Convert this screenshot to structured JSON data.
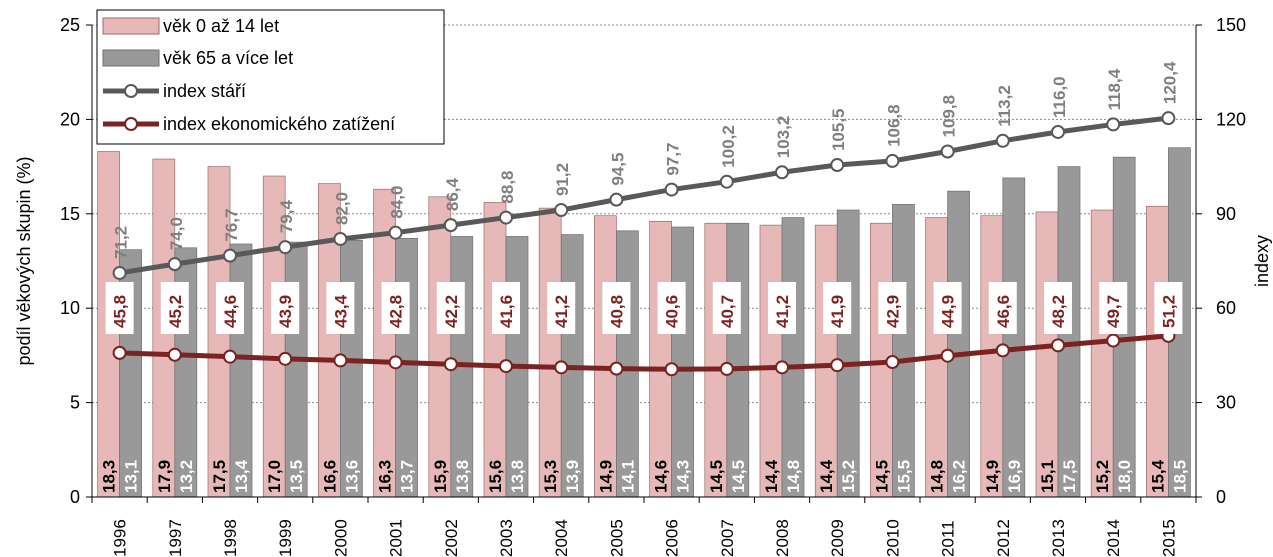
{
  "chart_data": {
    "type": "bar",
    "categories": [
      "1996",
      "1997",
      "1998",
      "1999",
      "2000",
      "2001",
      "2002",
      "2003",
      "2004",
      "2005",
      "2006",
      "2007",
      "2008",
      "2009",
      "2010",
      "2011",
      "2012",
      "2013",
      "2014",
      "2015"
    ],
    "ylabel": "podíl věkových skupin (%)",
    "y2label": "indexy",
    "ylim": [
      0,
      25
    ],
    "y2lim": [
      0,
      150
    ],
    "yticks": [
      "0",
      "5",
      "10",
      "15",
      "20",
      "25"
    ],
    "y2ticks": [
      "0",
      "30",
      "60",
      "90",
      "120",
      "150"
    ],
    "grid": "horizontal dotted",
    "legend_position": "top-left",
    "series": [
      {
        "name": "věk 0 až 14 let",
        "kind": "bar",
        "axis": "left",
        "color": "#e6b9b8",
        "values": [
          18.3,
          17.9,
          17.5,
          17.0,
          16.6,
          16.3,
          15.9,
          15.6,
          15.3,
          14.9,
          14.6,
          14.5,
          14.4,
          14.4,
          14.5,
          14.8,
          14.9,
          15.1,
          15.2,
          15.4
        ],
        "labels": [
          "18,3",
          "17,9",
          "17,5",
          "17,0",
          "16,6",
          "16,3",
          "15,9",
          "15,6",
          "15,3",
          "14,9",
          "14,6",
          "14,5",
          "14,4",
          "14,4",
          "14,5",
          "14,8",
          "14,9",
          "15,1",
          "15,2",
          "15,4"
        ]
      },
      {
        "name": "věk 65 a více let",
        "kind": "bar",
        "axis": "left",
        "color": "#999999",
        "values": [
          13.1,
          13.2,
          13.4,
          13.5,
          13.6,
          13.7,
          13.8,
          13.8,
          13.9,
          14.1,
          14.3,
          14.5,
          14.8,
          15.2,
          15.5,
          16.2,
          16.9,
          17.5,
          18.0,
          18.5
        ],
        "labels": [
          "13,1",
          "13,2",
          "13,4",
          "13,5",
          "13,6",
          "13,7",
          "13,8",
          "13,8",
          "13,9",
          "14,1",
          "14,3",
          "14,5",
          "14,8",
          "15,2",
          "15,5",
          "16,2",
          "16,9",
          "17,5",
          "18,0",
          "18,5"
        ]
      },
      {
        "name": "index stáří",
        "kind": "line",
        "axis": "right",
        "color": "#595959",
        "values": [
          71.2,
          74.0,
          76.7,
          79.4,
          82.0,
          84.0,
          86.4,
          88.8,
          91.2,
          94.5,
          97.7,
          100.2,
          103.2,
          105.5,
          106.8,
          109.8,
          113.2,
          116.0,
          118.4,
          120.4
        ],
        "labels": [
          "71,2",
          "74,0",
          "76,7",
          "79,4",
          "82,0",
          "84,0",
          "86,4",
          "88,8",
          "91,2",
          "94,5",
          "97,7",
          "100,2",
          "103,2",
          "105,5",
          "106,8",
          "109,8",
          "113,2",
          "116,0",
          "118,4",
          "120,4"
        ]
      },
      {
        "name": "index ekonomického zatížení",
        "kind": "line",
        "axis": "right",
        "color": "#7b2222",
        "values": [
          45.8,
          45.2,
          44.6,
          43.9,
          43.4,
          42.8,
          42.2,
          41.6,
          41.2,
          40.8,
          40.6,
          40.7,
          41.2,
          41.9,
          42.9,
          44.9,
          46.6,
          48.2,
          49.7,
          51.2
        ],
        "labels": [
          "45,8",
          "45,2",
          "44,6",
          "43,9",
          "43,4",
          "42,8",
          "42,2",
          "41,6",
          "41,2",
          "40,8",
          "40,6",
          "40,7",
          "41,2",
          "41,9",
          "42,9",
          "44,9",
          "46,6",
          "48,2",
          "49,7",
          "51,2"
        ]
      }
    ]
  }
}
